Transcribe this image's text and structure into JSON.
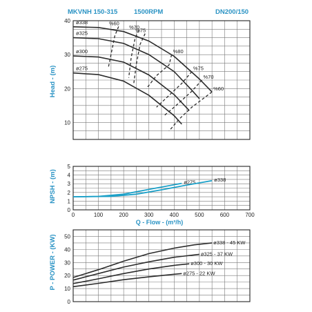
{
  "header": {
    "model": "MKVNH 150-315",
    "speed": "1500RPM",
    "size": "DN200/150"
  },
  "colors": {
    "accent": "#2a93c4",
    "curve": "#2b2b2b",
    "npsh": "#1aa0c8",
    "grid": "#777777",
    "frame": "#222222"
  },
  "chart_data": [
    {
      "type": "line",
      "name": "head",
      "ylabel": "Head - (m)",
      "xlim": [
        0,
        700
      ],
      "ylim": [
        5,
        40
      ],
      "yticks": [
        "40",
        "30",
        "20",
        "10"
      ],
      "series": [
        {
          "name": "ø338",
          "points": [
            [
              0,
              38.2
            ],
            [
              100,
              38.0
            ],
            [
              200,
              36.8
            ],
            [
              300,
              34.0
            ],
            [
              400,
              29.5
            ],
            [
              500,
              22.8
            ],
            [
              550,
              19.0
            ]
          ]
        },
        {
          "name": "ø325",
          "points": [
            [
              0,
              35.0
            ],
            [
              100,
              34.7
            ],
            [
              200,
              33.3
            ],
            [
              300,
              30.0
            ],
            [
              400,
              25.0
            ],
            [
              470,
              19.5
            ],
            [
              500,
              17.0
            ]
          ]
        },
        {
          "name": "ø300",
          "points": [
            [
              0,
              29.6
            ],
            [
              100,
              29.3
            ],
            [
              200,
              27.8
            ],
            [
              300,
              24.0
            ],
            [
              400,
              18.2
            ],
            [
              460,
              13.5
            ]
          ]
        },
        {
          "name": "ø275",
          "points": [
            [
              0,
              24.6
            ],
            [
              100,
              24.1
            ],
            [
              200,
              22.2
            ],
            [
              300,
              18.0
            ],
            [
              400,
              12.0
            ],
            [
              430,
              9.5
            ]
          ]
        }
      ],
      "efficiency": [
        {
          "label": "%60",
          "side": "left",
          "points": [
            [
              180,
              38.3
            ],
            [
              165,
              35.5
            ],
            [
              140,
              26.4
            ]
          ]
        },
        {
          "label": "%70",
          "side": "left",
          "points": [
            [
              260,
              37.2
            ],
            [
              245,
              34.7
            ],
            [
              230,
              29.2
            ],
            [
              220,
              23.2
            ]
          ]
        },
        {
          "label": "%75",
          "side": "left",
          "points": [
            [
              285,
              36.2
            ],
            [
              265,
              33.0
            ],
            [
              250,
              27.0
            ],
            [
              240,
              21.5
            ]
          ]
        },
        {
          "label": "%80",
          "side": "right",
          "points": [
            [
              390,
              30.0
            ],
            [
              380,
              27.0
            ],
            [
              330,
              23.8
            ],
            [
              290,
              20.0
            ]
          ]
        },
        {
          "label": "%75",
          "side": "right",
          "points": [
            [
              470,
              25.0
            ],
            [
              430,
              21.5
            ],
            [
              380,
              18.0
            ],
            [
              330,
              14.5
            ]
          ]
        },
        {
          "label": "%70",
          "side": "right",
          "points": [
            [
              510,
              22.5
            ],
            [
              470,
              19.2
            ],
            [
              400,
              14.5
            ],
            [
              360,
              12.0
            ]
          ]
        },
        {
          "label": "%60",
          "side": "right",
          "points": [
            [
              550,
              19.0
            ],
            [
              470,
              14.5
            ],
            [
              420,
              11.0
            ],
            [
              380,
              7.5
            ]
          ]
        }
      ]
    },
    {
      "type": "line",
      "name": "npsh",
      "ylabel": "NPSH - (m)",
      "xlabel": "Q - Flow - (m³/h)",
      "xlim": [
        0,
        700
      ],
      "ylim": [
        0,
        5
      ],
      "xticks": [
        "0",
        "100",
        "200",
        "300",
        "400",
        "500",
        "600",
        "700"
      ],
      "yticks": [
        "5",
        "4",
        "3",
        "2",
        "1",
        "0"
      ],
      "series": [
        {
          "name": "ø275",
          "points": [
            [
              0,
              1.5
            ],
            [
              100,
              1.55
            ],
            [
              200,
              1.8
            ],
            [
              300,
              2.35
            ],
            [
              430,
              3.05
            ]
          ]
        },
        {
          "name": "ø338",
          "points": [
            [
              0,
              1.5
            ],
            [
              150,
              1.55
            ],
            [
              250,
              1.8
            ],
            [
              350,
              2.3
            ],
            [
              450,
              2.85
            ],
            [
              550,
              3.35
            ]
          ]
        }
      ]
    },
    {
      "type": "line",
      "name": "power",
      "ylabel": "P - POWER - (KW)",
      "xlim": [
        0,
        700
      ],
      "ylim": [
        0,
        55
      ],
      "yticks": [
        "50",
        "40",
        "30",
        "20",
        "10",
        "0"
      ],
      "series": [
        {
          "name": "ø338 - 45 KW",
          "points": [
            [
              0,
              18.5
            ],
            [
              100,
              24.5
            ],
            [
              200,
              31.0
            ],
            [
              300,
              36.8
            ],
            [
              400,
              41.0
            ],
            [
              480,
              43.5
            ],
            [
              550,
              45.0
            ]
          ]
        },
        {
          "name": "ø325 - 37 KW",
          "points": [
            [
              0,
              16.5
            ],
            [
              100,
              21.5
            ],
            [
              200,
              26.5
            ],
            [
              300,
              30.5
            ],
            [
              400,
              34.0
            ],
            [
              500,
              36.3
            ]
          ]
        },
        {
          "name": "ø300 - 30 KW",
          "points": [
            [
              0,
              13.8
            ],
            [
              100,
              17.5
            ],
            [
              200,
              21.5
            ],
            [
              300,
              25.0
            ],
            [
              400,
              27.8
            ],
            [
              460,
              29.0
            ]
          ]
        },
        {
          "name": "ø275 - 22 KW",
          "points": [
            [
              0,
              11.5
            ],
            [
              100,
              14.0
            ],
            [
              200,
              16.8
            ],
            [
              300,
              19.0
            ],
            [
              400,
              21.0
            ],
            [
              430,
              21.5
            ]
          ]
        }
      ]
    }
  ]
}
